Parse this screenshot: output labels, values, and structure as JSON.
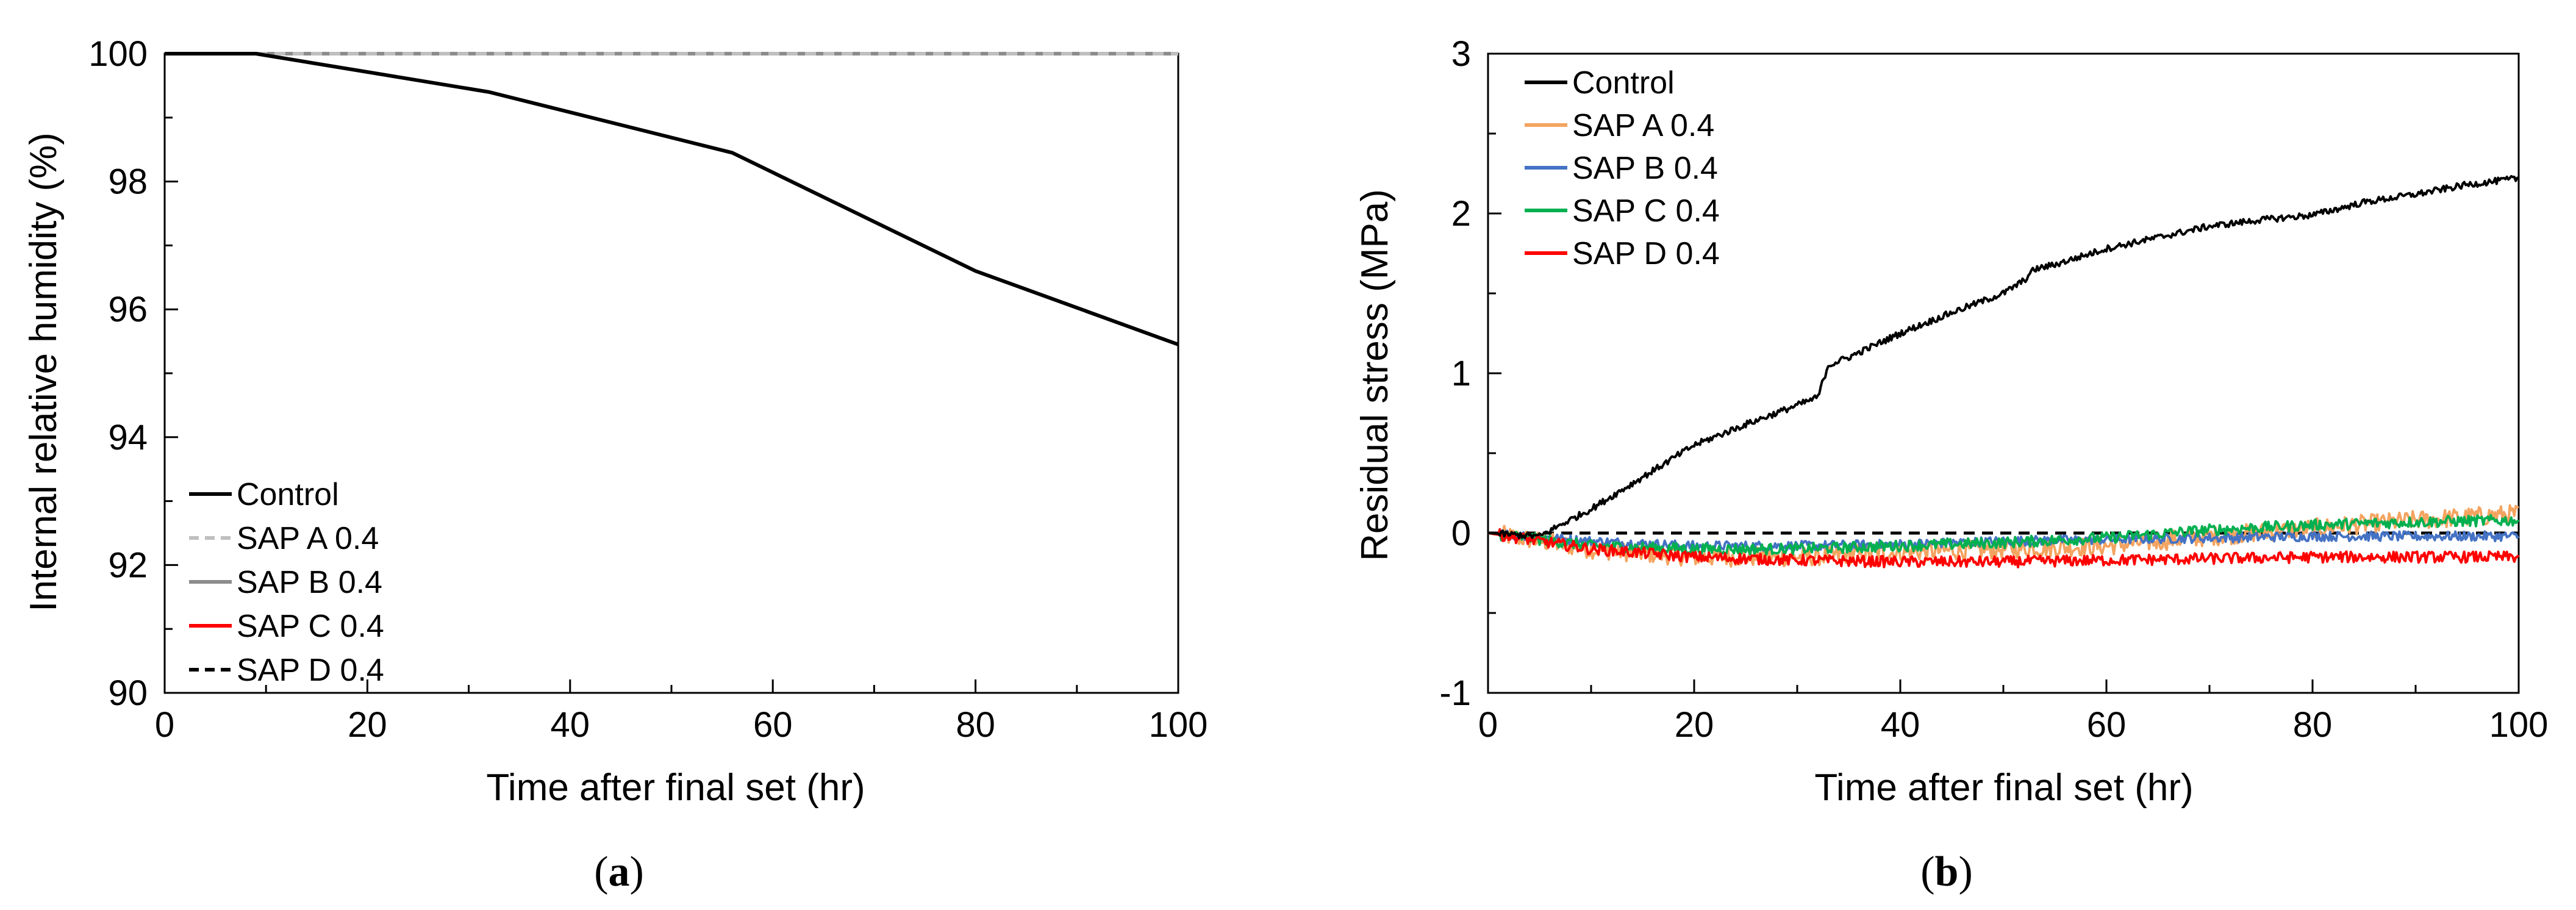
{
  "chart_data": [
    {
      "type": "line",
      "panel_label": {
        "open": "(",
        "letter": "a",
        "close": ")"
      },
      "title": "",
      "xlabel": "Time after final set (hr)",
      "ylabel": "Internal relative humidity (%)",
      "xlim": [
        0,
        100
      ],
      "ylim": [
        90,
        100
      ],
      "xticks": [
        0,
        20,
        40,
        60,
        80,
        100
      ],
      "yticks": [
        90,
        92,
        94,
        96,
        98,
        100
      ],
      "grid": false,
      "legend_position": "bottom-left",
      "series": [
        {
          "name": "Control",
          "color": "#000000",
          "dash": "solid",
          "x": [
            0,
            9,
            32,
            56,
            80,
            100
          ],
          "y": [
            100,
            100,
            99.4,
            98.45,
            96.6,
            95.45
          ]
        },
        {
          "name": "SAP A 0.4",
          "color": "#bfbfbf",
          "dash": "dashed",
          "x": [
            0,
            100
          ],
          "y": [
            100,
            100
          ]
        },
        {
          "name": "SAP B 0.4",
          "color": "#8c8c8c",
          "dash": "solid",
          "x": [
            0,
            100
          ],
          "y": [
            100,
            100
          ]
        },
        {
          "name": "SAP C 0.4",
          "color": "#ff0000",
          "dash": "solid",
          "x": [
            0,
            100
          ],
          "y": [
            100,
            100
          ]
        },
        {
          "name": "SAP D 0.4",
          "color": "#000000",
          "dash": "dashed",
          "x": [
            0,
            100
          ],
          "y": [
            100,
            100
          ]
        }
      ]
    },
    {
      "type": "line",
      "panel_label": {
        "open": "(",
        "letter": "b",
        "close": ")"
      },
      "title": "",
      "xlabel": "Time after final set (hr)",
      "ylabel": "Residual stress (MPa)",
      "xlim": [
        0,
        100
      ],
      "ylim": [
        -1,
        3
      ],
      "xticks": [
        0,
        20,
        40,
        60,
        80,
        100
      ],
      "yticks": [
        -1,
        0,
        1,
        2,
        3
      ],
      "grid": false,
      "legend_position": "top-left",
      "reference_line": {
        "y": 0,
        "color": "#000000",
        "dash": "dashed"
      },
      "series": [
        {
          "name": "Control",
          "color": "#000000",
          "noise": 0.02,
          "x": [
            0,
            5,
            7,
            10,
            15,
            20,
            25,
            30,
            32,
            33,
            35,
            40,
            45,
            50,
            52,
            53,
            55,
            60,
            65,
            70,
            75,
            80,
            85,
            90,
            95,
            100
          ],
          "y": [
            0,
            -0.02,
            0.05,
            0.15,
            0.35,
            0.55,
            0.68,
            0.8,
            0.85,
            1.05,
            1.1,
            1.25,
            1.38,
            1.5,
            1.58,
            1.65,
            1.68,
            1.78,
            1.85,
            1.92,
            1.96,
            1.99,
            2.07,
            2.12,
            2.18,
            2.22
          ]
        },
        {
          "name": "SAP A 0.4",
          "color": "#f4a460",
          "noise": 0.06,
          "x": [
            0,
            10,
            20,
            30,
            40,
            50,
            60,
            70,
            80,
            90,
            100
          ],
          "y": [
            0,
            -0.1,
            -0.15,
            -0.15,
            -0.12,
            -0.1,
            -0.08,
            -0.02,
            0.03,
            0.08,
            0.12
          ]
        },
        {
          "name": "SAP B 0.4",
          "color": "#4472c4",
          "noise": 0.03,
          "x": [
            0,
            10,
            20,
            30,
            40,
            50,
            60,
            70,
            80,
            90,
            100
          ],
          "y": [
            0,
            -0.05,
            -0.08,
            -0.08,
            -0.07,
            -0.05,
            -0.04,
            -0.03,
            -0.02,
            -0.02,
            -0.02
          ]
        },
        {
          "name": "SAP C 0.4",
          "color": "#00b050",
          "noise": 0.035,
          "x": [
            0,
            10,
            20,
            30,
            40,
            50,
            60,
            70,
            80,
            90,
            100
          ],
          "y": [
            0,
            -0.08,
            -0.1,
            -0.1,
            -0.08,
            -0.06,
            -0.03,
            0.02,
            0.05,
            0.07,
            0.08
          ]
        },
        {
          "name": "SAP D 0.4",
          "color": "#ff0000",
          "noise": 0.035,
          "x": [
            0,
            10,
            20,
            30,
            40,
            50,
            60,
            70,
            80,
            90,
            100
          ],
          "y": [
            0,
            -0.1,
            -0.15,
            -0.17,
            -0.18,
            -0.18,
            -0.17,
            -0.16,
            -0.15,
            -0.15,
            -0.15
          ]
        }
      ]
    }
  ]
}
